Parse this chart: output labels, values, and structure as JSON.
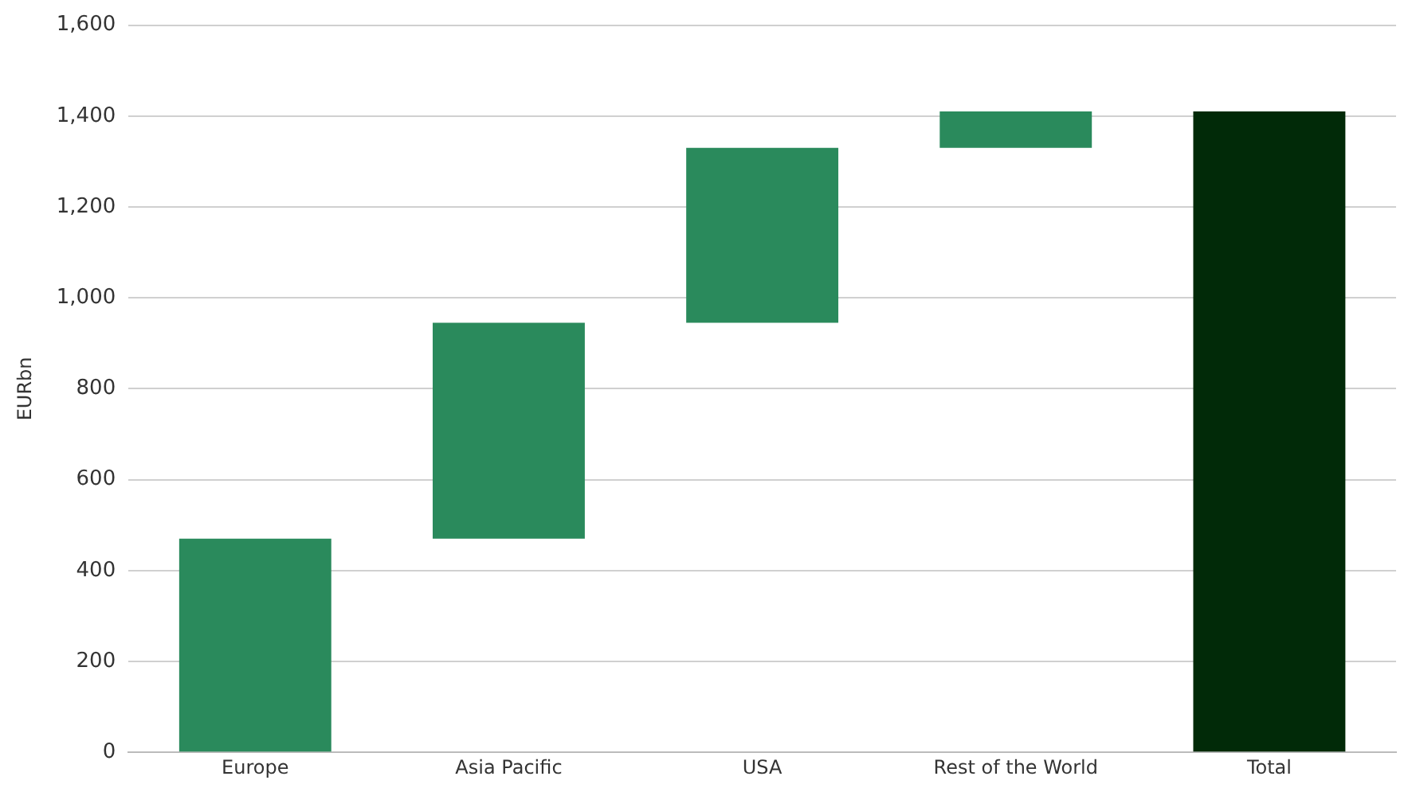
{
  "chart_data": {
    "type": "bar",
    "ylabel": "EURbn",
    "categories": [
      "Europe",
      "Asia Pacific",
      "USA",
      "Rest of the World",
      "Total"
    ],
    "values": [
      470,
      475,
      385,
      80,
      1410
    ],
    "base": [
      0,
      470,
      945,
      1330,
      0
    ],
    "colors": [
      "#2a8a5c",
      "#2a8a5c",
      "#2a8a5c",
      "#2a8a5c",
      "#012a08"
    ],
    "ylim": [
      0,
      1600
    ],
    "yticks": [
      {
        "value": 0,
        "label": "0"
      },
      {
        "value": 200,
        "label": "200"
      },
      {
        "value": 400,
        "label": "400"
      },
      {
        "value": 600,
        "label": "600"
      },
      {
        "value": 800,
        "label": "800"
      },
      {
        "value": 1000,
        "label": "1,000"
      },
      {
        "value": 1200,
        "label": "1,200"
      },
      {
        "value": 1400,
        "label": "1,400"
      },
      {
        "value": 1600,
        "label": "1,600"
      }
    ],
    "grid": "y",
    "legend": false
  }
}
